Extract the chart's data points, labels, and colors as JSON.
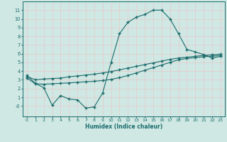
{
  "xlabel": "Humidex (Indice chaleur)",
  "xlim": [
    -0.5,
    23.5
  ],
  "ylim": [
    -1.2,
    12.0
  ],
  "xticks": [
    0,
    1,
    2,
    3,
    4,
    5,
    6,
    7,
    8,
    9,
    10,
    11,
    12,
    13,
    14,
    15,
    16,
    17,
    18,
    19,
    20,
    21,
    22,
    23
  ],
  "yticks": [
    0,
    1,
    2,
    3,
    4,
    5,
    6,
    7,
    8,
    9,
    10,
    11
  ],
  "ytick_labels": [
    "-0",
    "1",
    "2",
    "3",
    "4",
    "5",
    "6",
    "7",
    "8",
    "9",
    "10",
    "11"
  ],
  "bg_color": "#cfe8e4",
  "line_color": "#1a6b6b",
  "grid_color": "#e8c8c8",
  "line1_x": [
    0,
    1,
    2,
    3,
    4,
    5,
    6,
    7,
    8,
    9,
    10,
    11,
    12,
    13,
    14,
    15,
    16,
    17,
    18,
    19,
    20,
    21,
    22,
    23
  ],
  "line1_y": [
    3.5,
    2.6,
    2.1,
    0.1,
    1.2,
    0.8,
    0.7,
    -0.25,
    -0.1,
    1.5,
    5.0,
    8.3,
    9.6,
    10.2,
    10.5,
    11.0,
    11.0,
    10.0,
    8.3,
    6.5,
    6.2,
    5.9,
    5.5,
    5.7
  ],
  "line2_x": [
    0,
    1,
    2,
    3,
    4,
    5,
    6,
    7,
    8,
    9,
    10,
    11,
    12,
    13,
    14,
    15,
    16,
    17,
    18,
    19,
    20,
    21,
    22,
    23
  ],
  "line2_y": [
    3.4,
    3.0,
    3.1,
    3.15,
    3.2,
    3.35,
    3.45,
    3.55,
    3.65,
    3.8,
    3.95,
    4.15,
    4.35,
    4.55,
    4.75,
    4.95,
    5.15,
    5.35,
    5.5,
    5.6,
    5.7,
    5.8,
    5.88,
    5.95
  ],
  "line3_x": [
    0,
    1,
    2,
    3,
    4,
    5,
    6,
    7,
    8,
    9,
    10,
    11,
    12,
    13,
    14,
    15,
    16,
    17,
    18,
    19,
    20,
    21,
    22,
    23
  ],
  "line3_y": [
    3.2,
    2.55,
    2.5,
    2.55,
    2.6,
    2.65,
    2.72,
    2.78,
    2.84,
    2.92,
    3.05,
    3.25,
    3.5,
    3.8,
    4.1,
    4.4,
    4.7,
    5.0,
    5.3,
    5.45,
    5.55,
    5.65,
    5.72,
    5.8
  ]
}
